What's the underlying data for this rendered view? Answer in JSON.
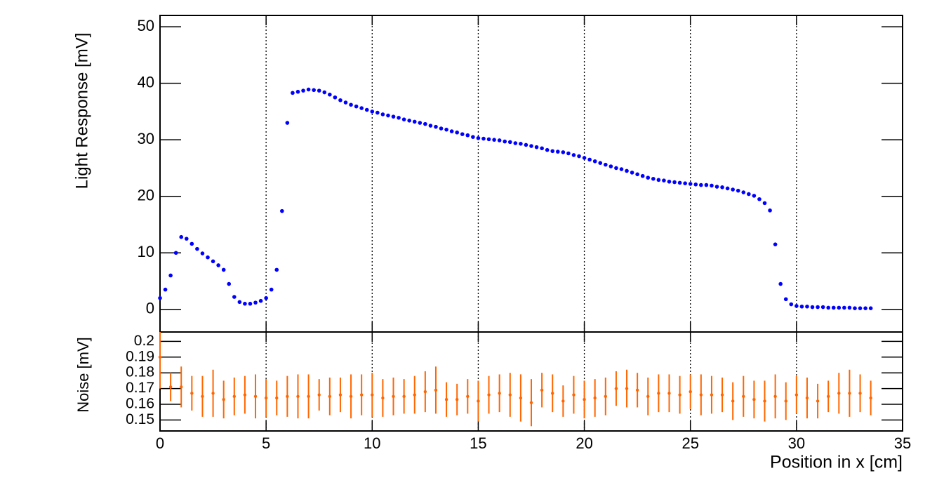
{
  "chart_data": [
    {
      "type": "scatter",
      "y_label": "Light Response [mV]",
      "xlim": [
        0,
        35
      ],
      "xticks": [
        0,
        5,
        10,
        15,
        20,
        25,
        30,
        35
      ],
      "ylim": [
        -4,
        52
      ],
      "yticks": [
        0,
        10,
        20,
        30,
        40,
        50
      ],
      "grid_x": true,
      "series": [
        {
          "color": "#0000ff",
          "x": [
            0,
            0.25,
            0.5,
            0.75,
            1,
            1.25,
            1.5,
            1.75,
            2,
            2.25,
            2.5,
            2.75,
            3,
            3.25,
            3.5,
            3.75,
            4,
            4.25,
            4.5,
            4.75,
            5,
            5.25,
            5.5,
            5.75,
            6,
            6.25,
            6.5,
            6.75,
            7,
            7.25,
            7.5,
            7.75,
            8,
            8.25,
            8.5,
            8.75,
            9,
            9.25,
            9.5,
            9.75,
            10,
            10.25,
            10.5,
            10.75,
            11,
            11.25,
            11.5,
            11.75,
            12,
            12.25,
            12.5,
            12.75,
            13,
            13.25,
            13.5,
            13.75,
            14,
            14.25,
            14.5,
            14.75,
            15,
            15.25,
            15.5,
            15.75,
            16,
            16.25,
            16.5,
            16.75,
            17,
            17.25,
            17.5,
            17.75,
            18,
            18.25,
            18.5,
            18.75,
            19,
            19.25,
            19.5,
            19.75,
            20,
            20.25,
            20.5,
            20.75,
            21,
            21.25,
            21.5,
            21.75,
            22,
            22.25,
            22.5,
            22.75,
            23,
            23.25,
            23.5,
            23.75,
            24,
            24.25,
            24.5,
            24.75,
            25,
            25.25,
            25.5,
            25.75,
            26,
            26.25,
            26.5,
            26.75,
            27,
            27.25,
            27.5,
            27.75,
            28,
            28.25,
            28.5,
            28.75,
            29,
            29.25,
            29.5,
            29.75,
            30,
            30.25,
            30.5,
            30.75,
            31,
            31.25,
            31.5,
            31.75,
            32,
            32.25,
            32.5,
            32.75,
            33,
            33.25,
            33.5
          ],
          "values": [
            2.0,
            3.5,
            6.0,
            10.0,
            12.8,
            12.5,
            11.6,
            10.7,
            9.9,
            9.2,
            8.5,
            7.8,
            7.0,
            4.5,
            2.2,
            1.3,
            1.0,
            1.0,
            1.2,
            1.5,
            2.0,
            3.5,
            7.0,
            17.4,
            33.0,
            38.3,
            38.5,
            38.7,
            38.9,
            38.8,
            38.7,
            38.4,
            38.0,
            37.5,
            37.0,
            36.6,
            36.2,
            35.9,
            35.6,
            35.3,
            35.0,
            34.8,
            34.5,
            34.3,
            34.1,
            33.9,
            33.6,
            33.4,
            33.2,
            33.0,
            32.8,
            32.5,
            32.3,
            32.0,
            31.8,
            31.5,
            31.3,
            31.0,
            30.8,
            30.5,
            30.3,
            30.2,
            30.1,
            30.0,
            29.9,
            29.7,
            29.6,
            29.4,
            29.3,
            29.1,
            28.9,
            28.7,
            28.5,
            28.2,
            28.0,
            27.9,
            27.8,
            27.6,
            27.3,
            27.1,
            26.8,
            26.5,
            26.2,
            25.9,
            25.6,
            25.3,
            25.0,
            24.8,
            24.5,
            24.2,
            23.9,
            23.6,
            23.3,
            23.1,
            22.9,
            22.8,
            22.6,
            22.5,
            22.4,
            22.3,
            22.2,
            22.1,
            22.0,
            22.0,
            21.9,
            21.7,
            21.6,
            21.4,
            21.2,
            21.0,
            20.7,
            20.4,
            20.1,
            19.5,
            18.8,
            17.5,
            11.5,
            4.5,
            1.8,
            0.9,
            0.6,
            0.5,
            0.5,
            0.4,
            0.4,
            0.4,
            0.3,
            0.3,
            0.3,
            0.3,
            0.3,
            0.2,
            0.2,
            0.2,
            0.2
          ]
        }
      ]
    },
    {
      "type": "errorbar",
      "y_label": "Noise [mV]",
      "x_label": "Position in x [cm]",
      "xlim": [
        0,
        35
      ],
      "xticks": [
        0,
        5,
        10,
        15,
        20,
        25,
        30,
        35
      ],
      "ylim": [
        0.143,
        0.206
      ],
      "yticks": [
        0.15,
        0.16,
        0.17,
        0.18,
        0.19,
        0.2
      ],
      "grid_x": true,
      "series": [
        {
          "color": "#ff6600",
          "x": [
            0,
            0.5,
            1,
            1.5,
            2,
            2.5,
            3,
            3.5,
            4,
            4.5,
            5,
            5.5,
            6,
            6.5,
            7,
            7.5,
            8,
            8.5,
            9,
            9.5,
            10,
            10.5,
            11,
            11.5,
            12,
            12.5,
            13,
            13.5,
            14,
            14.5,
            15,
            15.5,
            16,
            16.5,
            17,
            17.5,
            18,
            18.5,
            19,
            19.5,
            20,
            20.5,
            21,
            21.5,
            22,
            22.5,
            23,
            23.5,
            24,
            24.5,
            25,
            25.5,
            26,
            26.5,
            27,
            27.5,
            28,
            28.5,
            29,
            29.5,
            30,
            30.5,
            31,
            31.5,
            32,
            32.5,
            33,
            33.5
          ],
          "values": [
            0.19,
            0.171,
            0.171,
            0.167,
            0.165,
            0.167,
            0.163,
            0.165,
            0.166,
            0.165,
            0.164,
            0.164,
            0.165,
            0.165,
            0.165,
            0.166,
            0.165,
            0.166,
            0.165,
            0.166,
            0.166,
            0.164,
            0.165,
            0.165,
            0.166,
            0.168,
            0.169,
            0.163,
            0.163,
            0.165,
            0.162,
            0.166,
            0.167,
            0.166,
            0.164,
            0.161,
            0.169,
            0.167,
            0.162,
            0.166,
            0.163,
            0.164,
            0.165,
            0.17,
            0.17,
            0.169,
            0.165,
            0.167,
            0.167,
            0.166,
            0.168,
            0.166,
            0.166,
            0.166,
            0.162,
            0.165,
            0.163,
            0.162,
            0.165,
            0.162,
            0.166,
            0.164,
            0.162,
            0.165,
            0.167,
            0.167,
            0.167,
            0.164
          ],
          "errors": [
            0.02,
            0.009,
            0.013,
            0.011,
            0.013,
            0.015,
            0.012,
            0.012,
            0.012,
            0.014,
            0.012,
            0.011,
            0.013,
            0.014,
            0.014,
            0.01,
            0.012,
            0.011,
            0.014,
            0.013,
            0.014,
            0.012,
            0.012,
            0.011,
            0.012,
            0.013,
            0.015,
            0.011,
            0.01,
            0.011,
            0.013,
            0.012,
            0.012,
            0.014,
            0.015,
            0.015,
            0.011,
            0.012,
            0.01,
            0.012,
            0.012,
            0.012,
            0.012,
            0.011,
            0.012,
            0.011,
            0.012,
            0.012,
            0.012,
            0.012,
            0.011,
            0.013,
            0.012,
            0.011,
            0.012,
            0.013,
            0.012,
            0.013,
            0.014,
            0.012,
            0.012,
            0.013,
            0.011,
            0.01,
            0.013,
            0.015,
            0.012,
            0.011
          ]
        }
      ]
    }
  ]
}
